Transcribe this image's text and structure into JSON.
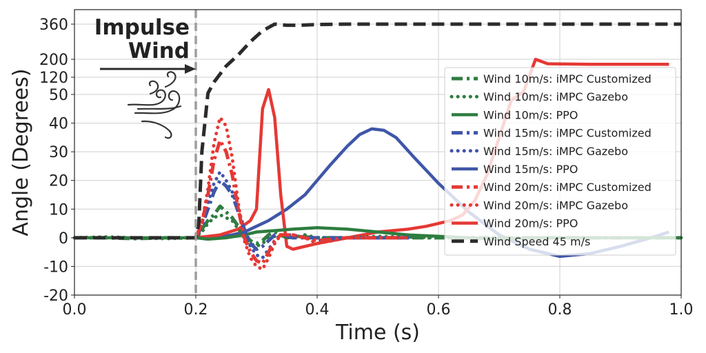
{
  "chart_data": {
    "type": "line",
    "xlabel": "Time (s)",
    "ylabel": "Angle (Degrees)",
    "xlim": [
      0.0,
      1.0
    ],
    "x_ticks": [
      "0.0",
      "0.2",
      "0.4",
      "0.6",
      "0.8",
      "1.0"
    ],
    "y_ticks": [
      "-20",
      "-10",
      "0",
      "10",
      "20",
      "30",
      "40",
      "50",
      "120",
      "200",
      "360"
    ],
    "y_scale": "piecewise (linear -20..50, compressed 50..360)",
    "grid": true,
    "legend_position": "right",
    "annotation": {
      "line1": "Impulse",
      "line2": "Wind",
      "marker_x": 0.2
    },
    "series": [
      {
        "name": "Wind 10m/s: iMPC Customized",
        "color": "#2e7d40",
        "style": "dashdot",
        "x": [
          0.0,
          0.05,
          0.1,
          0.15,
          0.2,
          0.21,
          0.22,
          0.23,
          0.24,
          0.25,
          0.26,
          0.27,
          0.28,
          0.29,
          0.3,
          0.31,
          0.32,
          0.33,
          0.34,
          0.35,
          0.37,
          0.4,
          0.45,
          0.5,
          0.55,
          0.6,
          0.7,
          0.8,
          0.9,
          1.0
        ],
        "y": [
          0,
          0,
          -0.3,
          0,
          0,
          3,
          6,
          8,
          11,
          9,
          7,
          4,
          1,
          -1,
          -2,
          -1,
          1,
          2,
          1,
          0,
          0.5,
          0,
          0,
          0,
          0,
          0,
          0,
          0,
          0,
          0
        ]
      },
      {
        "name": "Wind 10m/s: iMPC Gazebo",
        "color": "#2e7d40",
        "style": "dotted",
        "x": [
          0.0,
          0.05,
          0.1,
          0.15,
          0.2,
          0.21,
          0.22,
          0.23,
          0.24,
          0.25,
          0.26,
          0.27,
          0.28,
          0.29,
          0.3,
          0.31,
          0.32,
          0.34,
          0.36,
          0.38,
          0.4,
          0.45,
          0.5,
          0.6,
          0.7,
          0.8,
          0.9,
          1.0
        ],
        "y": [
          0,
          0.3,
          0,
          -0.3,
          0,
          2,
          5,
          7,
          8,
          7,
          6,
          3,
          0,
          -2,
          -3,
          -2,
          0,
          1,
          0,
          1,
          0,
          0,
          0.5,
          0,
          0,
          0,
          0,
          0
        ]
      },
      {
        "name": "Wind 10m/s: PPO",
        "color": "#2e7d40",
        "style": "solid",
        "x": [
          0.0,
          0.1,
          0.2,
          0.22,
          0.25,
          0.28,
          0.3,
          0.33,
          0.36,
          0.4,
          0.45,
          0.5,
          0.55,
          0.6,
          0.65,
          0.7,
          0.75,
          0.8,
          0.9,
          1.0
        ],
        "y": [
          0,
          0,
          0,
          -0.5,
          0,
          1,
          2,
          2.5,
          3,
          3.5,
          3,
          2,
          1,
          0.5,
          0,
          -0.5,
          0,
          0,
          0,
          0
        ]
      },
      {
        "name": "Wind 15m/s: iMPC Customized",
        "color": "#3f56a8",
        "style": "dashdot",
        "x": [
          0.2,
          0.21,
          0.22,
          0.23,
          0.24,
          0.25,
          0.26,
          0.27,
          0.28,
          0.29,
          0.3,
          0.31,
          0.32,
          0.33,
          0.34,
          0.36,
          0.38,
          0.4,
          0.45,
          0.5,
          0.55
        ],
        "y": [
          0,
          4,
          10,
          16,
          20,
          18,
          15,
          9,
          3,
          -2,
          -4,
          -3,
          -1,
          1,
          1,
          0,
          0,
          0,
          0,
          0,
          0
        ]
      },
      {
        "name": "Wind 15m/s: iMPC Gazebo",
        "color": "#3f56a8",
        "style": "dotted",
        "x": [
          0.2,
          0.21,
          0.22,
          0.23,
          0.24,
          0.25,
          0.26,
          0.27,
          0.28,
          0.29,
          0.3,
          0.31,
          0.32,
          0.33,
          0.34,
          0.36,
          0.38,
          0.4,
          0.45,
          0.5,
          0.55
        ],
        "y": [
          0,
          5,
          12,
          19,
          23,
          20,
          16,
          10,
          3,
          -3,
          -6,
          -7,
          -4,
          -1,
          1,
          1,
          0,
          -1,
          0,
          0,
          0
        ]
      },
      {
        "name": "Wind 15m/s: PPO",
        "color": "#3f56a8",
        "style": "solid",
        "x": [
          0.2,
          0.23,
          0.26,
          0.28,
          0.3,
          0.32,
          0.35,
          0.38,
          0.4,
          0.42,
          0.45,
          0.47,
          0.49,
          0.51,
          0.53,
          0.56,
          0.6,
          0.65,
          0.7,
          0.75,
          0.8,
          0.85,
          0.9,
          0.95,
          0.98
        ],
        "y": [
          0,
          0,
          1,
          2,
          4,
          6,
          10,
          15,
          20,
          25,
          32,
          36,
          38,
          37.5,
          35,
          28,
          19,
          9,
          1,
          -4,
          -6.5,
          -5.5,
          -3,
          0,
          2
        ]
      },
      {
        "name": "Wind 20m/s: iMPC Customized",
        "color": "#e53935",
        "style": "dashdot",
        "x": [
          0.2,
          0.21,
          0.22,
          0.23,
          0.24,
          0.25,
          0.26,
          0.27,
          0.28,
          0.29,
          0.3,
          0.31,
          0.32,
          0.33,
          0.34,
          0.36,
          0.38,
          0.4,
          0.45,
          0.5,
          0.55
        ],
        "y": [
          0,
          5,
          15,
          27,
          34,
          30,
          22,
          10,
          0,
          -5,
          -8,
          -9,
          -5,
          -1,
          1,
          1,
          0,
          -1,
          0,
          0,
          0
        ]
      },
      {
        "name": "Wind 20m/s: iMPC Gazebo",
        "color": "#e53935",
        "style": "dotted",
        "x": [
          0.2,
          0.21,
          0.22,
          0.23,
          0.24,
          0.25,
          0.26,
          0.27,
          0.28,
          0.29,
          0.3,
          0.31,
          0.32,
          0.33,
          0.34,
          0.36,
          0.38,
          0.4,
          0.45,
          0.5,
          0.55
        ],
        "y": [
          0,
          5,
          17,
          33,
          42,
          39,
          28,
          12,
          -1,
          -7,
          -10,
          -11,
          -7,
          -2,
          1,
          1,
          0,
          -2,
          0,
          0,
          0
        ]
      },
      {
        "name": "Wind 20m/s: PPO",
        "color": "#e53935",
        "style": "solid",
        "x": [
          0.2,
          0.24,
          0.27,
          0.29,
          0.3,
          0.31,
          0.32,
          0.33,
          0.34,
          0.35,
          0.36,
          0.4,
          0.45,
          0.5,
          0.55,
          0.58,
          0.6,
          0.62,
          0.64,
          0.66,
          0.68,
          0.7,
          0.72,
          0.74,
          0.76,
          0.78,
          0.85,
          0.9,
          0.95,
          0.98
        ],
        "y": [
          0,
          1,
          3,
          6,
          10,
          45,
          70,
          42,
          15,
          -3,
          -4,
          -2,
          0,
          2,
          3,
          4,
          5,
          6,
          8,
          13,
          22,
          35,
          48,
          60,
          200,
          180,
          178,
          178,
          178,
          178
        ]
      },
      {
        "name": "Wind Speed 45 m/s",
        "color": "#2b2b2b",
        "style": "dashed",
        "x": [
          0.0,
          0.2,
          0.205,
          0.21,
          0.22,
          0.23,
          0.25,
          0.27,
          0.29,
          0.31,
          0.33,
          0.35,
          0.37,
          0.4,
          0.45,
          0.5,
          0.6,
          0.7,
          0.8,
          0.9,
          1.0
        ],
        "y": [
          0,
          0,
          5,
          30,
          55,
          100,
          170,
          220,
          280,
          330,
          360,
          355,
          355,
          358,
          360,
          360,
          360,
          360,
          360,
          360,
          360
        ]
      }
    ]
  }
}
